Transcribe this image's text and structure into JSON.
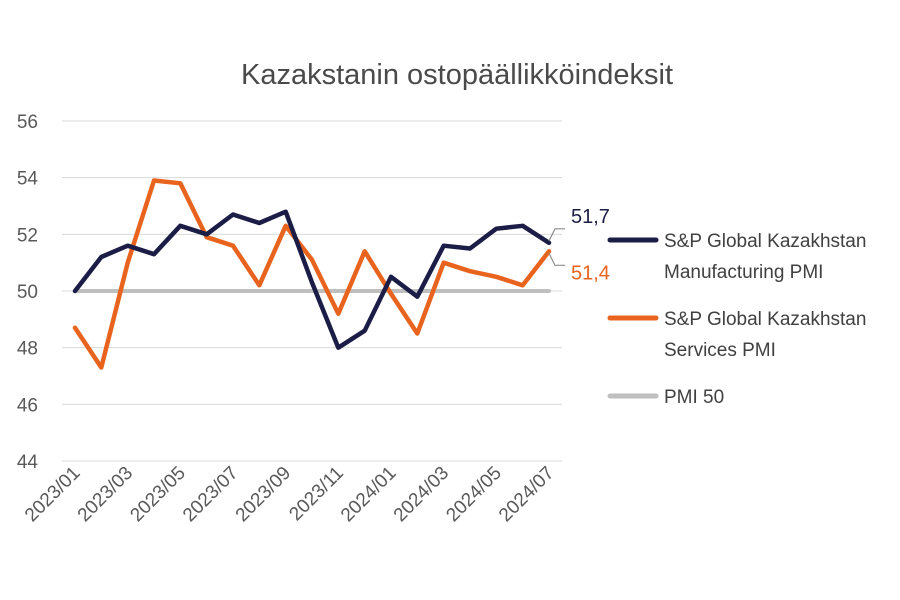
{
  "chart_data": {
    "type": "line",
    "title": "Kazakstanin ostopäällikköindeksit",
    "xlabel": "",
    "ylabel": "",
    "ylim": [
      44,
      56
    ],
    "yticks": [
      "44",
      "46",
      "48",
      "50",
      "52",
      "54",
      "56"
    ],
    "grid": true,
    "legend_position": "right",
    "x": [
      "2023/01",
      "2023/02",
      "2023/03",
      "2023/04",
      "2023/05",
      "2023/06",
      "2023/07",
      "2023/08",
      "2023/09",
      "2023/10",
      "2023/11",
      "2023/12",
      "2024/01",
      "2024/02",
      "2024/03",
      "2024/04",
      "2024/05",
      "2024/06",
      "2024/07"
    ],
    "x_tick_labels": [
      "2023/01",
      "2023/03",
      "2023/05",
      "2023/07",
      "2023/09",
      "2023/11",
      "2024/01",
      "2024/03",
      "2024/05",
      "2024/07"
    ],
    "series": [
      {
        "name": "S&P Global Kazakhstan Manufacturing PMI",
        "legend_lines": [
          "S&P Global Kazakhstan",
          "Manufacturing PMI"
        ],
        "color": "#1b1d46",
        "values": [
          50.0,
          51.2,
          51.6,
          51.3,
          52.3,
          52.0,
          52.7,
          52.4,
          52.8,
          50.3,
          48.0,
          48.6,
          50.5,
          49.8,
          51.6,
          51.5,
          52.2,
          52.3,
          51.7
        ],
        "end_label": "51,7"
      },
      {
        "name": "S&P Global Kazakhstan Services PMI",
        "legend_lines": [
          "S&P Global Kazakhstan",
          "Services PMI"
        ],
        "color": "#e8641e",
        "values": [
          48.7,
          47.3,
          51.0,
          53.9,
          53.8,
          51.9,
          51.6,
          50.2,
          52.3,
          51.1,
          49.2,
          51.4,
          49.9,
          48.5,
          51.0,
          50.7,
          50.5,
          50.2,
          51.4
        ],
        "end_label": "51,4"
      },
      {
        "name": "PMI 50",
        "legend_lines": [
          "PMI 50"
        ],
        "color": "#bfbfbf",
        "values": [
          50,
          50,
          50,
          50,
          50,
          50,
          50,
          50,
          50,
          50,
          50,
          50,
          50,
          50,
          50,
          50,
          50,
          50,
          50
        ]
      }
    ]
  }
}
